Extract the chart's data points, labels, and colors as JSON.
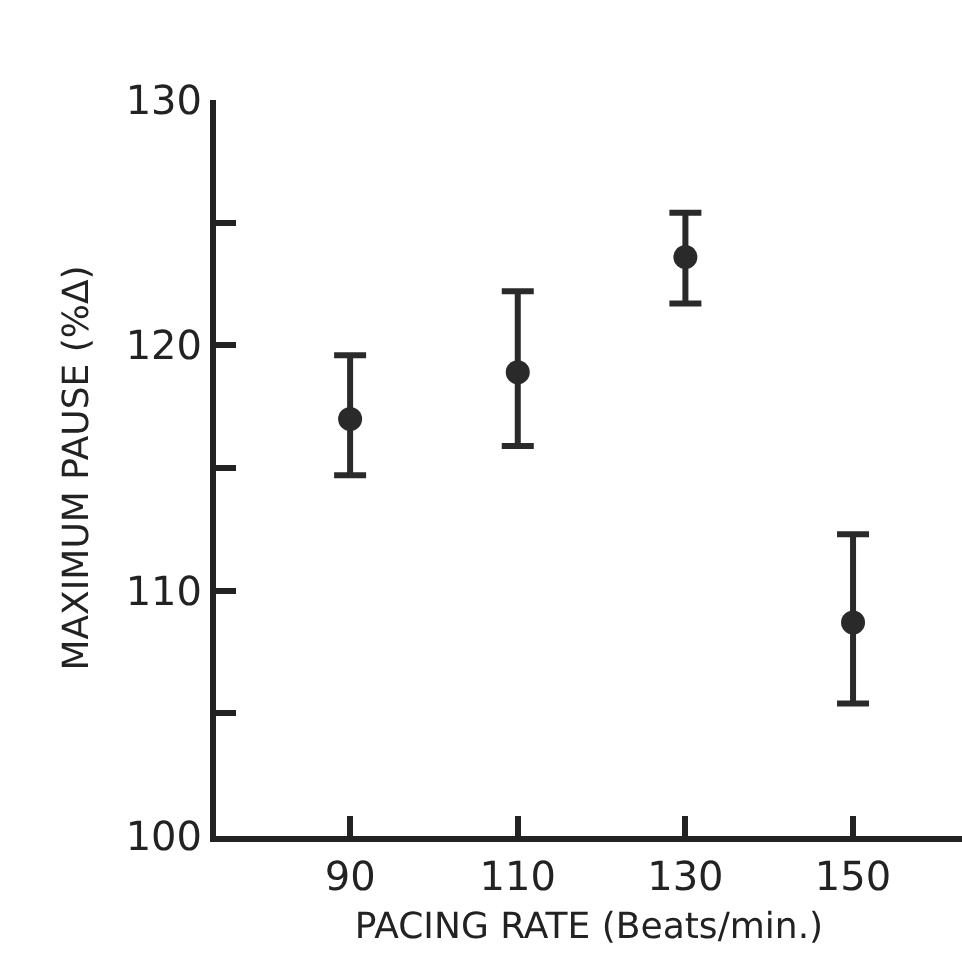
{
  "chart_data": {
    "type": "scatter",
    "xlabel": "PACING RATE (Beats/min.)",
    "ylabel": "MAXIMUM PAUSE (%Δ)",
    "x": [
      90,
      110,
      130,
      150
    ],
    "values": [
      117.0,
      118.9,
      123.6,
      108.7
    ],
    "errors": [
      [
        114.7,
        119.6
      ],
      [
        115.9,
        122.2
      ],
      [
        121.7,
        125.4
      ],
      [
        105.4,
        112.3
      ]
    ],
    "color": "#2a2a2a",
    "marker": "circle",
    "grid": false,
    "xlim": [
      74,
      163
    ],
    "xticks": [
      90,
      110,
      130,
      150
    ],
    "ylim": [
      100,
      130
    ],
    "yticks": [
      100,
      {
        "value": 105,
        "label": null
      },
      110,
      {
        "value": 115,
        "label": null
      },
      120,
      {
        "value": 125,
        "label": null
      },
      130
    ]
  }
}
